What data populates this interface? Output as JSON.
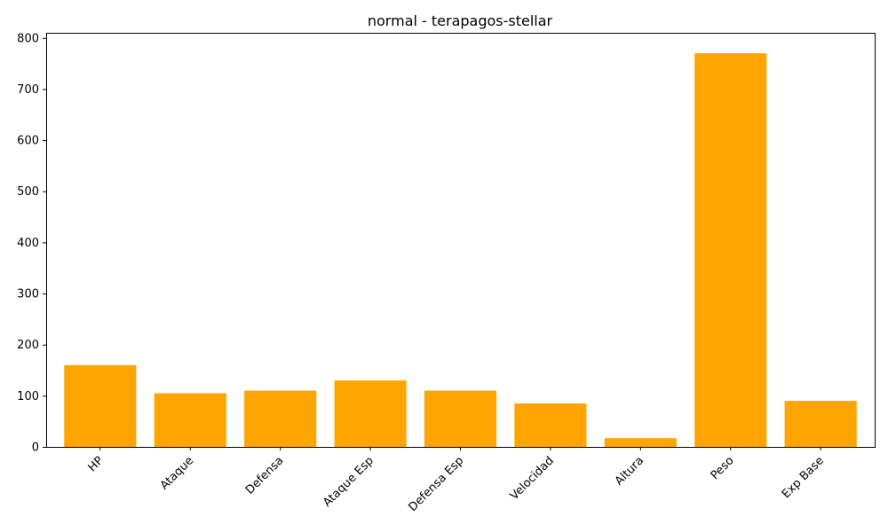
{
  "chart_data": {
    "type": "bar",
    "title": "normal - terapagos-stellar",
    "xlabel": "",
    "ylabel": "",
    "categories": [
      "HP",
      "Ataque",
      "Defensa",
      "Ataque Esp",
      "Defensa Esp",
      "Velocidad",
      "Altura",
      "Peso",
      "Exp Base"
    ],
    "values": [
      160,
      105,
      110,
      130,
      110,
      85,
      17,
      770,
      90
    ],
    "ylim": [
      0,
      810
    ],
    "yticks": [
      0,
      100,
      200,
      300,
      400,
      500,
      600,
      700,
      800
    ],
    "bar_color": "#FFA500",
    "grid": false,
    "legend": "none"
  }
}
